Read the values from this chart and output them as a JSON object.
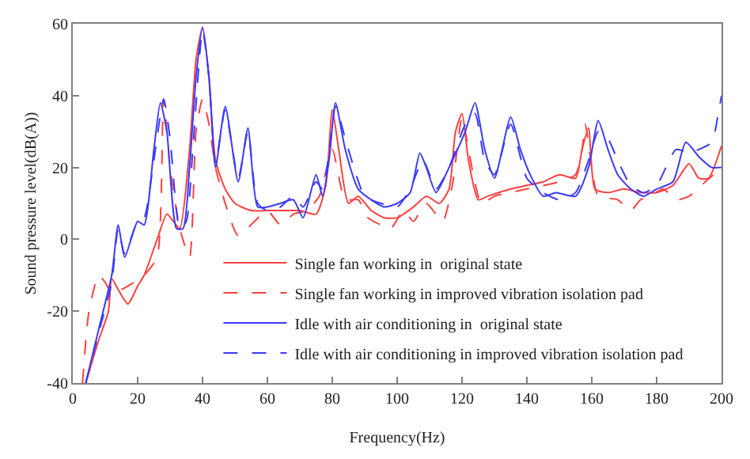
{
  "chart_data": {
    "type": "line",
    "xlabel": "Frequency(Hz)",
    "ylabel": "Sound pressure level(dB(A))",
    "xlim": [
      0,
      200
    ],
    "xticks": [
      0,
      20,
      40,
      60,
      80,
      100,
      120,
      140,
      160,
      180,
      200
    ],
    "ylim": [
      -40,
      60
    ],
    "yticks": [
      -40,
      -20,
      0,
      20,
      40,
      60
    ],
    "legend": "bottom",
    "marker": "none",
    "series": [
      {
        "name": "Single fan working in  original state",
        "color": "#ff4040",
        "line_style": "solid",
        "x": [
          4,
          8,
          11,
          12,
          14,
          17,
          20,
          22,
          26,
          29,
          31,
          33,
          36,
          38,
          40,
          42,
          44,
          47,
          50,
          55,
          60,
          65,
          70,
          75,
          78,
          80,
          82,
          85,
          88,
          92,
          96,
          100,
          105,
          109,
          113,
          116,
          118,
          120,
          122,
          125,
          128,
          135,
          140,
          145,
          150,
          155,
          157,
          159,
          161,
          165,
          170,
          175,
          180,
          185,
          190,
          193,
          196,
          200
        ],
        "values": [
          -40,
          -28,
          -20,
          -11,
          -14,
          -18,
          -13,
          -10,
          0,
          7,
          5,
          3,
          25,
          50,
          59,
          45,
          22,
          14,
          10,
          8,
          8,
          8,
          8,
          7,
          15,
          36,
          25,
          10,
          12,
          8,
          6,
          6,
          9,
          12,
          10,
          14,
          30,
          35,
          22,
          11,
          12,
          14,
          15,
          16,
          18,
          17,
          25,
          31,
          14,
          13,
          14,
          13,
          13,
          15,
          21,
          17,
          17,
          26
        ]
      },
      {
        "name": "Single fan working in improved vibration isolation pad",
        "color": "#ff4040",
        "line_style": "dashed",
        "x": [
          3,
          5,
          8,
          10,
          12,
          15,
          17,
          22,
          26,
          28,
          30,
          33,
          36,
          38,
          40,
          42,
          44,
          47,
          51,
          56,
          60,
          64,
          68,
          72,
          76,
          80,
          84,
          88,
          91,
          95,
          98,
          102,
          105,
          109,
          114,
          117,
          120,
          122,
          126,
          130,
          140,
          150,
          155,
          157,
          158,
          160,
          162,
          168,
          172,
          175,
          178,
          182,
          186,
          190,
          195,
          200
        ],
        "values": [
          -40,
          -20,
          -10,
          -12,
          -15,
          -14,
          -13,
          -10,
          -5,
          39,
          20,
          3,
          -5,
          30,
          39,
          32,
          20,
          10,
          1,
          5,
          8,
          4,
          7,
          8,
          12,
          25,
          11,
          11,
          6,
          4,
          3,
          8,
          5,
          10,
          5,
          15,
          34,
          25,
          10,
          12,
          14,
          16,
          18,
          25,
          32,
          20,
          12,
          11,
          8,
          11,
          12,
          14,
          11,
          12,
          16,
          20
        ]
      },
      {
        "name": "Idle with air conditioning in  original state",
        "color": "#3a3aff",
        "line_style": "solid",
        "x": [
          4,
          8,
          12,
          14,
          16,
          20,
          22,
          25,
          27,
          29,
          32,
          34,
          36,
          38,
          40,
          42,
          44,
          47,
          51,
          54,
          57,
          60,
          64,
          68,
          71,
          75,
          77,
          79,
          81,
          84,
          88,
          92,
          96,
          100,
          104,
          107,
          109,
          112,
          116,
          121,
          124,
          127,
          130,
          135,
          138,
          141,
          145,
          149,
          155,
          159,
          162,
          165,
          168,
          172,
          176,
          180,
          185,
          189,
          193,
          197,
          200
        ],
        "values": [
          -40,
          -25,
          -10,
          4,
          -5,
          5,
          4,
          25,
          38,
          30,
          3,
          3,
          20,
          45,
          59,
          45,
          20,
          37,
          16,
          31,
          9,
          9,
          10,
          11,
          6,
          18,
          12,
          22,
          38,
          25,
          14,
          11,
          9,
          10,
          13,
          24,
          20,
          13,
          20,
          30,
          38,
          25,
          17,
          34,
          25,
          18,
          12,
          13,
          12,
          20,
          33,
          25,
          18,
          14,
          12,
          14,
          16,
          27,
          23,
          20,
          20
        ]
      },
      {
        "name": "Idle with air conditioning in improved vibration isolation pad",
        "color": "#3a3aff",
        "line_style": "dashed",
        "x": [
          4,
          8,
          12,
          14,
          16,
          20,
          22,
          25,
          28,
          30,
          33,
          35,
          37,
          40,
          42,
          44,
          47,
          51,
          54,
          57,
          60,
          64,
          68,
          71,
          75,
          77,
          79,
          81,
          84,
          87,
          90,
          95,
          100,
          104,
          108,
          112,
          116,
          121,
          124,
          127,
          130,
          135,
          140,
          145,
          150,
          155,
          159,
          162,
          165,
          168,
          172,
          176,
          180,
          186,
          190,
          193,
          197,
          199,
          200
        ],
        "values": [
          -40,
          -26,
          -12,
          3,
          -4,
          5,
          6,
          22,
          39,
          28,
          3,
          5,
          25,
          58,
          45,
          21,
          36,
          17,
          30,
          10,
          8,
          9,
          12,
          9,
          16,
          14,
          24,
          37,
          28,
          19,
          12,
          10,
          9,
          14,
          22,
          14,
          20,
          32,
          35,
          22,
          18,
          32,
          17,
          13,
          11,
          13,
          22,
          30,
          28,
          22,
          15,
          13,
          15,
          25,
          24,
          25,
          27,
          35,
          40
        ]
      }
    ]
  }
}
